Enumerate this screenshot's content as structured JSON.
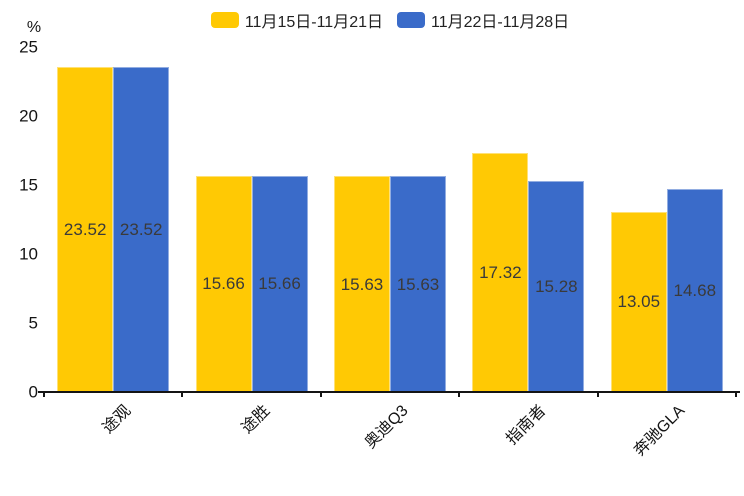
{
  "chart_data": {
    "type": "bar",
    "title": "",
    "categories": [
      "途观",
      "途胜",
      "奥迪Q3",
      "指南者",
      "奔驰GLA"
    ],
    "series": [
      {
        "name": "11月15日-11月21日",
        "color": "#FFC904",
        "values": [
          23.52,
          15.66,
          15.63,
          17.32,
          13.05
        ]
      },
      {
        "name": "11月22日-11月28日",
        "color": "#3A6BC9",
        "values": [
          23.52,
          15.66,
          15.63,
          15.28,
          14.68
        ]
      }
    ],
    "xlabel": "",
    "ylabel": "%",
    "ylim": [
      0,
      25
    ],
    "yticks": [
      0,
      5,
      10,
      15,
      20,
      25
    ],
    "grid": false,
    "legend_position": "top-center",
    "value_labels": "inside-center",
    "value_label_color": "#3a3a3a",
    "axis_color": "#141414",
    "background": "#ffffff"
  }
}
